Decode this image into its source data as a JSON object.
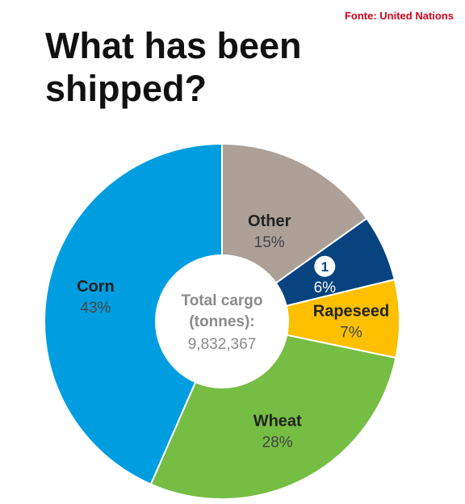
{
  "source": "Fonte: United Nations",
  "title": "What has been shipped?",
  "chart_data": {
    "type": "pie",
    "style": "donut",
    "center": {
      "label_line1": "Total cargo",
      "label_line2": "(tonnes):",
      "value": "9,832,367"
    },
    "slices": [
      {
        "name": "Other",
        "value": 15,
        "pct_label": "15%",
        "color": "#aca097"
      },
      {
        "name": "",
        "marker": "1",
        "value": 6,
        "pct_label": "6%",
        "color": "#06437f"
      },
      {
        "name": "Rapeseed",
        "value": 7,
        "pct_label": "7%",
        "color": "#fcc000"
      },
      {
        "name": "Wheat",
        "value": 28,
        "pct_label": "28%",
        "color": "#76bd43"
      },
      {
        "name": "Corn",
        "value": 43,
        "pct_label": "43%",
        "color": "#009ee0"
      }
    ]
  }
}
